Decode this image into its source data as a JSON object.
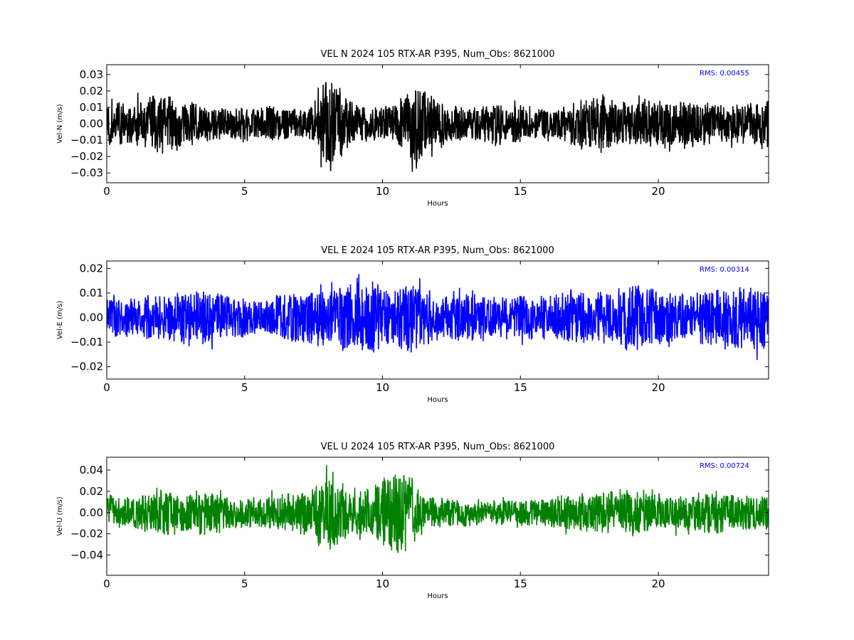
{
  "chart_data": [
    {
      "type": "line",
      "title": "VEL N 2024 105 RTX-AR  P395, Num_Obs: 8621000",
      "xlabel": "Hours",
      "ylabel": "Vel-N (m/s)",
      "xlim": [
        0,
        24
      ],
      "ylim": [
        -0.036,
        0.036
      ],
      "xticks": [
        0,
        5,
        10,
        15,
        20
      ],
      "xtick_labels": [
        "0",
        "5",
        "10",
        "15",
        "20"
      ],
      "yticks": [
        -0.03,
        -0.02,
        -0.01,
        0.0,
        0.01,
        0.02,
        0.03
      ],
      "ytick_labels": [
        "−0.03",
        "−0.02",
        "−0.01",
        "0.00",
        "0.01",
        "0.02",
        "0.03"
      ],
      "annotation": "RMS:  0.00455",
      "grid": false,
      "series": [
        {
          "color": "#000000",
          "x": [
            0,
            0.5,
            1,
            1.5,
            2,
            2.5,
            3,
            3.5,
            4,
            4.5,
            5,
            5.5,
            6,
            6.5,
            7,
            7.5,
            7.8,
            8.1,
            8.4,
            8.7,
            9,
            9.5,
            10,
            10.5,
            11,
            11.3,
            11.6,
            12,
            12.5,
            13,
            13.5,
            14,
            14.5,
            15,
            15.5,
            16,
            16.5,
            17,
            17.5,
            18,
            18.5,
            19,
            19.5,
            20,
            20.5,
            21,
            21.5,
            22,
            22.5,
            23,
            23.5,
            24
          ],
          "envelope": [
            0.017,
            0.015,
            0.014,
            0.017,
            0.019,
            0.017,
            0.014,
            0.011,
            0.01,
            0.009,
            0.011,
            0.01,
            0.012,
            0.01,
            0.009,
            0.012,
            0.025,
            0.032,
            0.027,
            0.016,
            0.013,
            0.011,
            0.01,
            0.014,
            0.023,
            0.029,
            0.02,
            0.014,
            0.012,
            0.01,
            0.011,
            0.013,
            0.011,
            0.012,
            0.011,
            0.009,
            0.011,
            0.015,
            0.017,
            0.018,
            0.014,
            0.013,
            0.016,
            0.015,
            0.013,
            0.016,
            0.014,
            0.012,
            0.011,
            0.013,
            0.014,
            0.016
          ]
        }
      ]
    },
    {
      "type": "line",
      "title": "VEL E 2024 105 RTX-AR  P395, Num_Obs: 8621000",
      "xlabel": "Hours",
      "ylabel": "Vel-E (m/s)",
      "xlim": [
        0,
        24
      ],
      "ylim": [
        -0.025,
        0.023
      ],
      "xticks": [
        0,
        5,
        10,
        15,
        20
      ],
      "xtick_labels": [
        "0",
        "5",
        "10",
        "15",
        "20"
      ],
      "yticks": [
        -0.02,
        -0.01,
        0.0,
        0.01,
        0.02
      ],
      "ytick_labels": [
        "−0.02",
        "−0.01",
        "0.00",
        "0.01",
        "0.02"
      ],
      "annotation": "RMS:  0.00314",
      "grid": false,
      "series": [
        {
          "color": "#0000ff",
          "x": [
            0,
            0.5,
            1,
            1.5,
            2,
            2.5,
            3,
            3.5,
            4,
            4.5,
            5,
            5.5,
            6,
            6.5,
            7,
            7.5,
            8,
            8.5,
            9,
            9.5,
            10,
            10.5,
            11,
            11.5,
            12,
            12.5,
            13,
            13.5,
            14,
            14.5,
            15,
            15.5,
            16,
            16.5,
            17,
            17.5,
            18,
            18.5,
            19,
            19.5,
            20,
            20.5,
            21,
            21.5,
            22,
            22.5,
            23,
            23.5,
            24
          ],
          "envelope": [
            0.009,
            0.008,
            0.008,
            0.009,
            0.009,
            0.01,
            0.012,
            0.011,
            0.01,
            0.009,
            0.008,
            0.007,
            0.009,
            0.011,
            0.01,
            0.011,
            0.012,
            0.015,
            0.017,
            0.016,
            0.013,
            0.012,
            0.016,
            0.012,
            0.01,
            0.009,
            0.01,
            0.01,
            0.009,
            0.009,
            0.009,
            0.009,
            0.009,
            0.01,
            0.011,
            0.01,
            0.011,
            0.012,
            0.013,
            0.014,
            0.011,
            0.01,
            0.01,
            0.011,
            0.012,
            0.012,
            0.013,
            0.013,
            0.012
          ]
        }
      ]
    },
    {
      "type": "line",
      "title": "VEL U 2024 105 RTX-AR  P395, Num_Obs: 8621000",
      "xlabel": "Hours",
      "ylabel": "Vel-U (m/s)",
      "xlim": [
        0,
        24
      ],
      "ylim": [
        -0.059,
        0.052
      ],
      "xticks": [
        0,
        5,
        10,
        15,
        20
      ],
      "xtick_labels": [
        "0",
        "5",
        "10",
        "15",
        "20"
      ],
      "yticks": [
        -0.04,
        -0.02,
        0.0,
        0.02,
        0.04
      ],
      "ytick_labels": [
        "−0.04",
        "−0.02",
        "0.00",
        "0.02",
        "0.04"
      ],
      "annotation": "RMS:  0.00724",
      "grid": false,
      "series": [
        {
          "color": "#008000",
          "x": [
            0,
            0.5,
            1,
            1.5,
            2,
            2.5,
            3,
            3.5,
            4,
            4.5,
            5,
            5.5,
            6,
            6.5,
            7,
            7.5,
            8,
            8.3,
            8.6,
            9,
            9.5,
            10,
            10.4,
            10.8,
            11.2,
            11.6,
            12,
            12.5,
            13,
            13.5,
            14,
            14.5,
            15,
            15.5,
            16,
            16.5,
            17,
            17.5,
            18,
            18.5,
            19,
            19.5,
            20,
            20.5,
            21,
            21.5,
            22,
            22.5,
            23,
            23.5,
            24
          ],
          "envelope": [
            0.018,
            0.016,
            0.015,
            0.018,
            0.022,
            0.021,
            0.02,
            0.022,
            0.021,
            0.017,
            0.016,
            0.013,
            0.016,
            0.018,
            0.021,
            0.025,
            0.035,
            0.04,
            0.028,
            0.02,
            0.024,
            0.036,
            0.04,
            0.038,
            0.028,
            0.016,
            0.014,
            0.015,
            0.014,
            0.013,
            0.012,
            0.012,
            0.013,
            0.012,
            0.013,
            0.017,
            0.02,
            0.018,
            0.019,
            0.023,
            0.021,
            0.018,
            0.017,
            0.016,
            0.017,
            0.019,
            0.021,
            0.019,
            0.017,
            0.016,
            0.017
          ]
        }
      ]
    }
  ]
}
